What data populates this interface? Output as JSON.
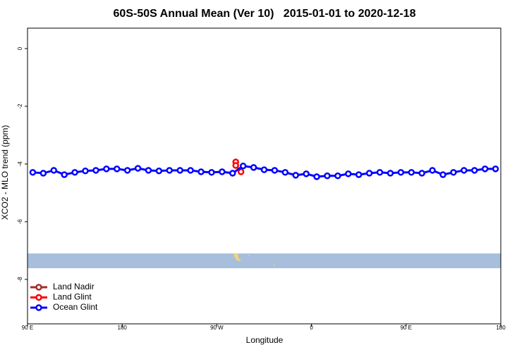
{
  "chart_data": {
    "type": "line",
    "title": "60S-50S Annual Mean (Ver 10)   2015-01-01 to 2020-12-18",
    "x_label": "Longitude",
    "y_label": "XCO2 - MLO trend (ppm)",
    "xlim": [
      90,
      540
    ],
    "ylim": [
      0.707,
      -9.54
    ],
    "xticks": [
      {
        "value": 90,
        "label": "90 E"
      },
      180,
      {
        "value": 270,
        "label": "90 W"
      },
      {
        "value": 360,
        "label": "0"
      },
      {
        "value": 450,
        "label": "90 E"
      },
      {
        "value": 540,
        "label": "180"
      }
    ],
    "yticks": [
      0,
      -2,
      -4,
      -6,
      -8
    ],
    "legend": "bottom-left",
    "series": [
      {
        "name": "Land Nadir",
        "color": "#a52a2a",
        "x": [],
        "values": []
      },
      {
        "name": "Land Glint",
        "color": "#ff0000",
        "x": [
          288,
          288,
          293
        ],
        "values": [
          -3.93,
          -4.05,
          -4.27
        ]
      },
      {
        "name": "Ocean Glint",
        "color": "#0000ff",
        "x": [
          95,
          105,
          115,
          125,
          135,
          145,
          155,
          165,
          175,
          185,
          195,
          205,
          215,
          225,
          235,
          245,
          255,
          265,
          275,
          285,
          295,
          305,
          315,
          325,
          335,
          345,
          355,
          365,
          375,
          385,
          395,
          405,
          415,
          425,
          435,
          445,
          455,
          465,
          475,
          485,
          495,
          505,
          515,
          525,
          535
        ],
        "values": [
          -4.29,
          -4.32,
          -4.22,
          -4.37,
          -4.29,
          -4.24,
          -4.22,
          -4.17,
          -4.17,
          -4.22,
          -4.15,
          -4.22,
          -4.24,
          -4.22,
          -4.22,
          -4.22,
          -4.27,
          -4.29,
          -4.27,
          -4.32,
          -4.07,
          -4.12,
          -4.2,
          -4.22,
          -4.29,
          -4.39,
          -4.34,
          -4.44,
          -4.41,
          -4.41,
          -4.34,
          -4.37,
          -4.32,
          -4.29,
          -4.32,
          -4.29,
          -4.29,
          -4.32,
          -4.22,
          -4.37,
          -4.29,
          -4.22,
          -4.22,
          -4.17,
          -4.17
        ]
      }
    ]
  }
}
